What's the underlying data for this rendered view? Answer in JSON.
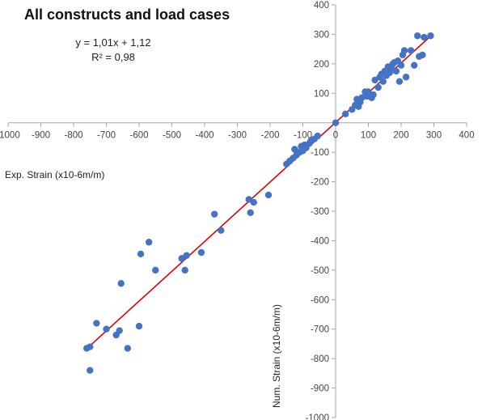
{
  "chart_data": {
    "type": "scatter",
    "title": "All constructs and load cases",
    "xlabel": "Exp. Strain (x10-6m/m)",
    "ylabel": "Num. Strain (x10-6m/m)",
    "xlim": [
      -1000,
      400
    ],
    "ylim": [
      -1000,
      400
    ],
    "x_ticks": [
      "-1000",
      "-900",
      "-800",
      "-700",
      "-600",
      "-500",
      "-400",
      "-300",
      "-200",
      "-100",
      "0",
      "100",
      "200",
      "300",
      "400"
    ],
    "y_ticks": [
      "400",
      "300",
      "200",
      "100",
      "-100",
      "-200",
      "-300",
      "-400",
      "-500",
      "-600",
      "-700",
      "-800",
      "-900",
      "-1000"
    ],
    "trendline": {
      "equation": "y = 1,01x + 1,12",
      "r2": "R² = 0,98",
      "slope": 1.01,
      "intercept": 1.12,
      "x_range": [
        -760,
        290
      ]
    },
    "grid": false,
    "colors": {
      "points": "#4472C4",
      "trendline": "#E00000",
      "axis": "#A6A6A6"
    },
    "series": [
      {
        "points": [
          [
            -760,
            -765
          ],
          [
            -750,
            -760
          ],
          [
            -750,
            -840
          ],
          [
            -730,
            -680
          ],
          [
            -700,
            -700
          ],
          [
            -670,
            -720
          ],
          [
            -660,
            -705
          ],
          [
            -655,
            -545
          ],
          [
            -635,
            -765
          ],
          [
            -600,
            -690
          ],
          [
            -595,
            -445
          ],
          [
            -570,
            -405
          ],
          [
            -550,
            -500
          ],
          [
            -470,
            -460
          ],
          [
            -460,
            -500
          ],
          [
            -455,
            -450
          ],
          [
            -410,
            -440
          ],
          [
            -370,
            -310
          ],
          [
            -350,
            -365
          ],
          [
            -265,
            -260
          ],
          [
            -260,
            -305
          ],
          [
            -250,
            -270
          ],
          [
            -205,
            -245
          ],
          [
            -150,
            -140
          ],
          [
            -140,
            -130
          ],
          [
            -130,
            -120
          ],
          [
            -125,
            -90
          ],
          [
            -120,
            -110
          ],
          [
            -110,
            -100
          ],
          [
            -105,
            -80
          ],
          [
            -100,
            -95
          ],
          [
            -95,
            -75
          ],
          [
            -90,
            -85
          ],
          [
            -80,
            -70
          ],
          [
            -75,
            -60
          ],
          [
            -65,
            -55
          ],
          [
            -55,
            -45
          ],
          [
            0,
            0
          ],
          [
            30,
            30
          ],
          [
            50,
            45
          ],
          [
            60,
            60
          ],
          [
            65,
            80
          ],
          [
            70,
            55
          ],
          [
            75,
            70
          ],
          [
            80,
            85
          ],
          [
            90,
            105
          ],
          [
            95,
            90
          ],
          [
            100,
            105
          ],
          [
            110,
            85
          ],
          [
            115,
            95
          ],
          [
            120,
            145
          ],
          [
            130,
            120
          ],
          [
            135,
            155
          ],
          [
            140,
            165
          ],
          [
            145,
            140
          ],
          [
            150,
            175
          ],
          [
            155,
            160
          ],
          [
            160,
            190
          ],
          [
            165,
            170
          ],
          [
            170,
            185
          ],
          [
            175,
            200
          ],
          [
            180,
            205
          ],
          [
            185,
            175
          ],
          [
            190,
            210
          ],
          [
            195,
            140
          ],
          [
            200,
            195
          ],
          [
            205,
            230
          ],
          [
            210,
            245
          ],
          [
            215,
            155
          ],
          [
            230,
            245
          ],
          [
            240,
            195
          ],
          [
            250,
            295
          ],
          [
            255,
            225
          ],
          [
            265,
            230
          ],
          [
            270,
            290
          ],
          [
            290,
            295
          ]
        ]
      }
    ]
  }
}
